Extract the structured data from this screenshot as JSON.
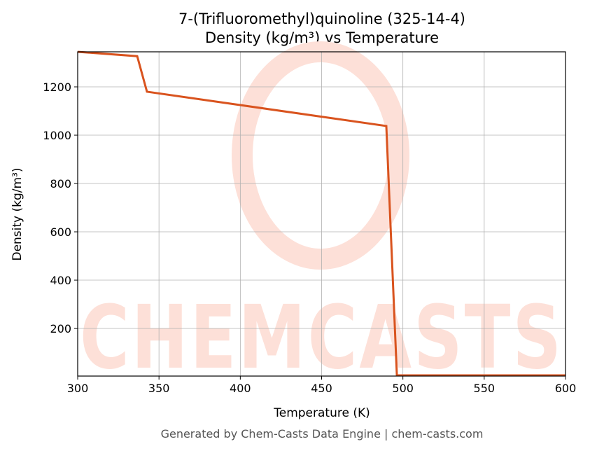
{
  "chart_data": {
    "type": "line",
    "title": "7-(Trifluoromethyl)quinoline (325-14-4)",
    "subtitle": "Density (kg/m³) vs Temperature",
    "xlabel": "Temperature (K)",
    "ylabel": "Density (kg/m³)",
    "footer": "Generated by Chem-Casts Data Engine | chem-casts.com",
    "watermark": "CHEMCASTS",
    "x": [
      300,
      336.6,
      342.6,
      489.8,
      496.3,
      600
    ],
    "series": [
      {
        "name": "Density",
        "color": "#d9531e",
        "values": [
          1345,
          1327,
          1180,
          1038,
          6,
          6
        ]
      }
    ],
    "xlim": [
      300,
      600
    ],
    "xticks": [
      300,
      350,
      400,
      450,
      500,
      550,
      600
    ],
    "ylim": [
      3,
      1345
    ],
    "yticks": [
      200,
      400,
      600,
      800,
      1000,
      1200
    ],
    "grid": true
  }
}
